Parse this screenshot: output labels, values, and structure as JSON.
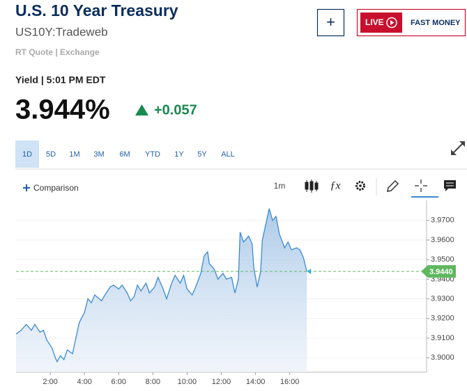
{
  "header": {
    "title": "U.S. 10 Year Treasury",
    "symbol": "US10Y:Tradeweb",
    "quote_source": "RT Quote | Exchange"
  },
  "buttons": {
    "add": "+",
    "live": "LIVE",
    "fast_money": "FAST MONEY"
  },
  "quote": {
    "time_label": "Yield | 5:01 PM EDT",
    "price": "3.944%",
    "change": "+0.057"
  },
  "tabs": [
    "1D",
    "5D",
    "1M",
    "3M",
    "6M",
    "YTD",
    "1Y",
    "5Y",
    "ALL"
  ],
  "selected_tab_index": 0,
  "toolbar": {
    "comparison": "Comparison",
    "interval": "1m"
  },
  "chart_data": {
    "type": "area",
    "color": "#3a8ad3",
    "grid": true,
    "xlim": [
      0,
      24
    ],
    "ylim": [
      3.8926,
      3.9802
    ],
    "xticks": [
      {
        "value": 2,
        "label": "2:00"
      },
      {
        "value": 4,
        "label": "4:00"
      },
      {
        "value": 6,
        "label": "6:00"
      },
      {
        "value": 8,
        "label": "8:00"
      },
      {
        "value": 10,
        "label": "10:00"
      },
      {
        "value": 12,
        "label": "12:00"
      },
      {
        "value": 14,
        "label": "14:00"
      },
      {
        "value": 16,
        "label": "16:00"
      }
    ],
    "yticks": [
      {
        "value": 3.9,
        "label": "3.9000"
      },
      {
        "value": 3.91,
        "label": "3.9100"
      },
      {
        "value": 3.92,
        "label": "3.9200"
      },
      {
        "value": 3.93,
        "label": "3.9300"
      },
      {
        "value": 3.94,
        "label": "3.9400"
      },
      {
        "value": 3.95,
        "label": "3.9500"
      },
      {
        "value": 3.96,
        "label": "3.9600"
      },
      {
        "value": 3.97,
        "label": "3.9700"
      }
    ],
    "current": {
      "value": 3.944,
      "label": "3.9440",
      "color": "#5fb85f"
    },
    "x": [
      0.0,
      0.3,
      0.6,
      0.9,
      1.1,
      1.4,
      1.6,
      1.8,
      2.1,
      2.3,
      2.4,
      2.6,
      2.8,
      3.0,
      3.3,
      3.5,
      3.7,
      4.0,
      4.2,
      4.4,
      4.6,
      5.0,
      5.2,
      5.5,
      5.7,
      6.0,
      6.2,
      6.5,
      6.7,
      6.9,
      7.1,
      7.3,
      7.6,
      7.8,
      8.1,
      8.3,
      8.6,
      8.8,
      9.1,
      9.3,
      9.6,
      9.8,
      10.0,
      10.3,
      10.5,
      10.8,
      11.0,
      11.2,
      11.3,
      11.6,
      11.8,
      12.1,
      12.3,
      12.6,
      12.8,
      13.0,
      13.1,
      13.3,
      13.6,
      13.8,
      13.9,
      14.1,
      14.3,
      14.4,
      14.6,
      14.8,
      15.0,
      15.2,
      15.4,
      15.7,
      15.9,
      16.1,
      16.4,
      16.6,
      16.8,
      17.0
    ],
    "values": [
      3.912,
      3.914,
      3.917,
      3.914,
      3.917,
      3.913,
      3.914,
      3.909,
      3.905,
      3.9,
      3.898,
      3.901,
      3.899,
      3.904,
      3.902,
      3.91,
      3.918,
      3.923,
      3.93,
      3.928,
      3.932,
      3.929,
      3.932,
      3.936,
      3.937,
      3.935,
      3.937,
      3.933,
      3.929,
      3.931,
      3.937,
      3.934,
      3.938,
      3.933,
      3.936,
      3.941,
      3.935,
      3.93,
      3.938,
      3.942,
      3.938,
      3.942,
      3.935,
      3.932,
      3.936,
      3.943,
      3.952,
      3.954,
      3.948,
      3.945,
      3.94,
      3.943,
      3.94,
      3.941,
      3.933,
      3.94,
      3.964,
      3.959,
      3.962,
      3.958,
      3.946,
      3.936,
      3.944,
      3.96,
      3.968,
      3.976,
      3.97,
      3.972,
      3.963,
      3.956,
      3.959,
      3.955,
      3.956,
      3.955,
      3.951,
      3.944
    ]
  }
}
